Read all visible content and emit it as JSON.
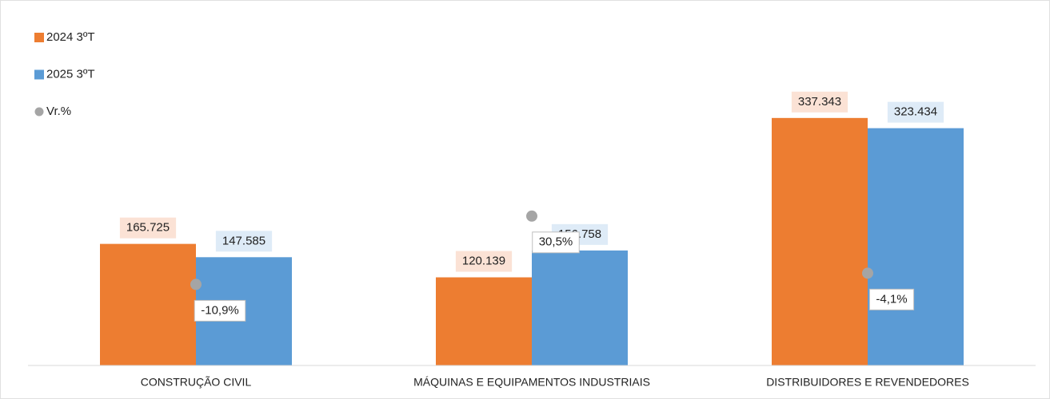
{
  "chart_data": {
    "type": "bar",
    "categories": [
      "CONSTRUÇÃO CIVIL",
      "MÁQUINAS E EQUIPAMENTOS INDUSTRIAIS",
      "DISTRIBUIDORES E REVENDEDORES"
    ],
    "series": [
      {
        "name": "2024 3ºT",
        "color": "#ed7d31",
        "values": [
          165725,
          120139,
          337343
        ],
        "value_labels": [
          "165.725",
          "120.139",
          "337.343"
        ]
      },
      {
        "name": "2025 3ºT",
        "color": "#5b9bd5",
        "values": [
          147585,
          156758,
          323434
        ],
        "value_labels": [
          "147.585",
          "156.758",
          "323.434"
        ]
      },
      {
        "name": "Vr.%",
        "color": "#a5a5a5",
        "type": "scatter",
        "axis": "y2",
        "values": [
          -10.9,
          30.5,
          -4.1
        ],
        "value_labels": [
          "-10,9%",
          "30,5%",
          "-4,1%"
        ]
      }
    ],
    "ylim": [
      0,
      360000
    ],
    "y2lim": [
      -60,
      100
    ],
    "legend": "top-left"
  }
}
